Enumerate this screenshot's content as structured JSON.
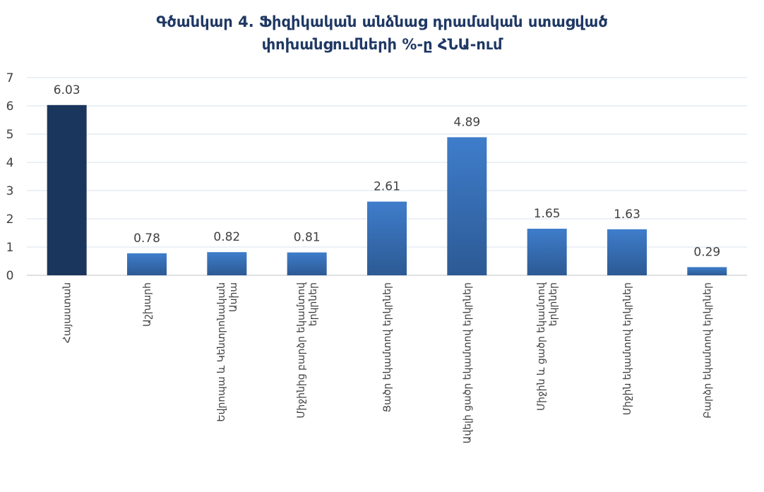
{
  "chart_data": {
    "type": "bar",
    "title_lines": [
      "Գծանկար 4. Ֆիզիկական անձնաց դրամական ստացված",
      "փոխանցումների %-ը ՀՆԱ-ում"
    ],
    "categories": [
      [
        "Հայաստան"
      ],
      [
        "Աշխարհ"
      ],
      [
        "Եվրոպա և Կենտրոնական",
        "Ասիա"
      ],
      [
        "Միջինից բարձր եկամտով",
        "երկրներ"
      ],
      [
        "Ցածր եկամտով երկրներ"
      ],
      [
        "Ավելի ցածր եկամտով երկրներ"
      ],
      [
        "Միջին և ցածր եկամտով",
        "երկրներ"
      ],
      [
        "Միջին եկամտով երկրներ"
      ],
      [
        "Բարձր եկամտով երկրներ"
      ]
    ],
    "values": [
      6.03,
      0.78,
      0.82,
      0.81,
      2.61,
      4.89,
      1.65,
      1.63,
      0.29
    ],
    "value_labels": [
      "6.03",
      "0.78",
      "0.82",
      "0.81",
      "2.61",
      "4.89",
      "1.65",
      "1.63",
      "0.29"
    ],
    "y_ticks": [
      "0",
      "1",
      "2",
      "3",
      "4",
      "5",
      "6",
      "7"
    ],
    "ylim": [
      0,
      7
    ],
    "grid": true,
    "colors": {
      "highlight": "#1B365D",
      "bar_top": "#3F7DCB",
      "bar_bottom": "#2C5A94",
      "grid": "#D9E2EE",
      "title": "#1F3864"
    },
    "highlight_index": 0
  }
}
